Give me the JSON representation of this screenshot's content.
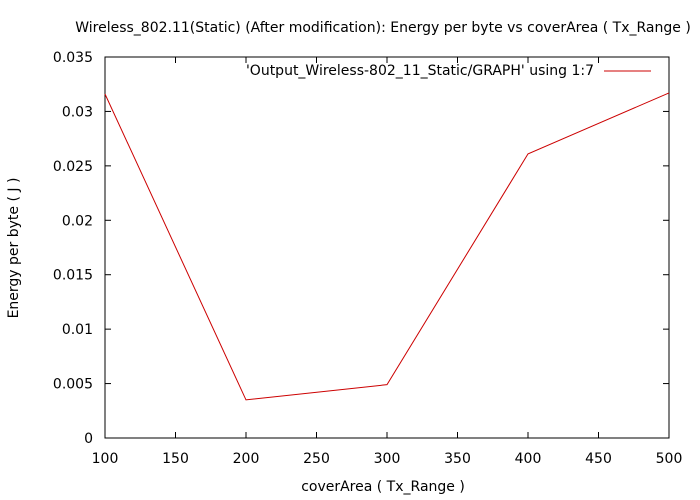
{
  "chart_data": {
    "type": "line",
    "title": "Wireless_802.11(Static) (After modification): Energy per byte vs coverArea ( Tx_Range )",
    "xlabel": "coverArea ( Tx_Range )",
    "ylabel": "Energy per byte ( J )",
    "xlim": [
      100,
      500
    ],
    "ylim": [
      0,
      0.035
    ],
    "x_ticks": [
      "100",
      "150",
      "200",
      "250",
      "300",
      "350",
      "400",
      "450",
      "500"
    ],
    "y_ticks": [
      "0",
      "0.005",
      "0.01",
      "0.015",
      "0.02",
      "0.025",
      "0.03",
      "0.035"
    ],
    "grid": false,
    "legend_position": "top-right",
    "series": [
      {
        "name": "'Output_Wireless-802_11_Static/GRAPH' using 1:7",
        "color": "#cc0000",
        "x": [
          100,
          200,
          300,
          400,
          500
        ],
        "y": [
          0.0316,
          0.0035,
          0.0049,
          0.0261,
          0.0317
        ]
      }
    ]
  }
}
